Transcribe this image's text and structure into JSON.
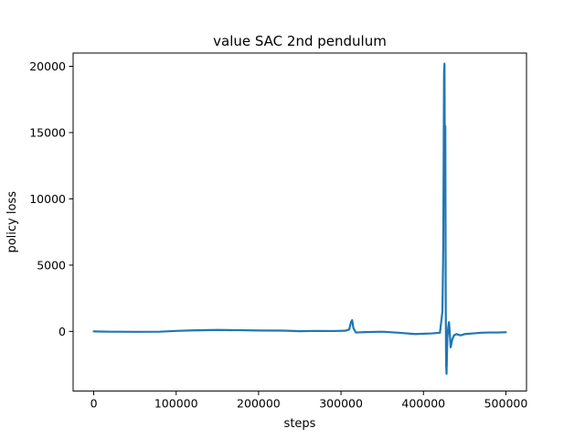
{
  "chart_data": {
    "type": "line",
    "title": "value SAC 2nd pendulum",
    "xlabel": "steps",
    "ylabel": "policy loss",
    "xlim": [
      -25000,
      525000
    ],
    "ylim": [
      -4500,
      21000
    ],
    "xticks": [
      0,
      100000,
      200000,
      300000,
      400000,
      500000
    ],
    "xtick_labels": [
      "0",
      "100000",
      "200000",
      "300000",
      "400000",
      "500000"
    ],
    "yticks": [
      0,
      5000,
      10000,
      15000,
      20000
    ],
    "ytick_labels": [
      "0",
      "5000",
      "10000",
      "15000",
      "20000"
    ],
    "grid": false,
    "legend": "none",
    "series": [
      {
        "color": "#1f77b4",
        "x": [
          0,
          20000,
          50000,
          80000,
          100000,
          120000,
          150000,
          180000,
          200000,
          230000,
          250000,
          270000,
          290000,
          305000,
          310000,
          312000,
          313500,
          315000,
          318000,
          330000,
          350000,
          370000,
          390000,
          410000,
          420000,
          423000,
          424000,
          425000,
          425500,
          426000,
          426500,
          427000,
          427500,
          428000,
          429000,
          430000,
          431000,
          432000,
          433000,
          435000,
          437000,
          440000,
          445000,
          450000,
          460000,
          470000,
          480000,
          490000,
          500000
        ],
        "y": [
          0,
          -20,
          -30,
          -20,
          40,
          80,
          110,
          90,
          70,
          60,
          20,
          40,
          30,
          50,
          150,
          700,
          850,
          250,
          -80,
          -50,
          -20,
          -100,
          -200,
          -150,
          -100,
          1500,
          6300,
          19500,
          20200,
          12000,
          15500,
          2500,
          -2500,
          -3200,
          -500,
          300,
          700,
          -200,
          -1200,
          -600,
          -300,
          -200,
          -300,
          -200,
          -150,
          -100,
          -80,
          -80,
          -60
        ]
      }
    ]
  }
}
